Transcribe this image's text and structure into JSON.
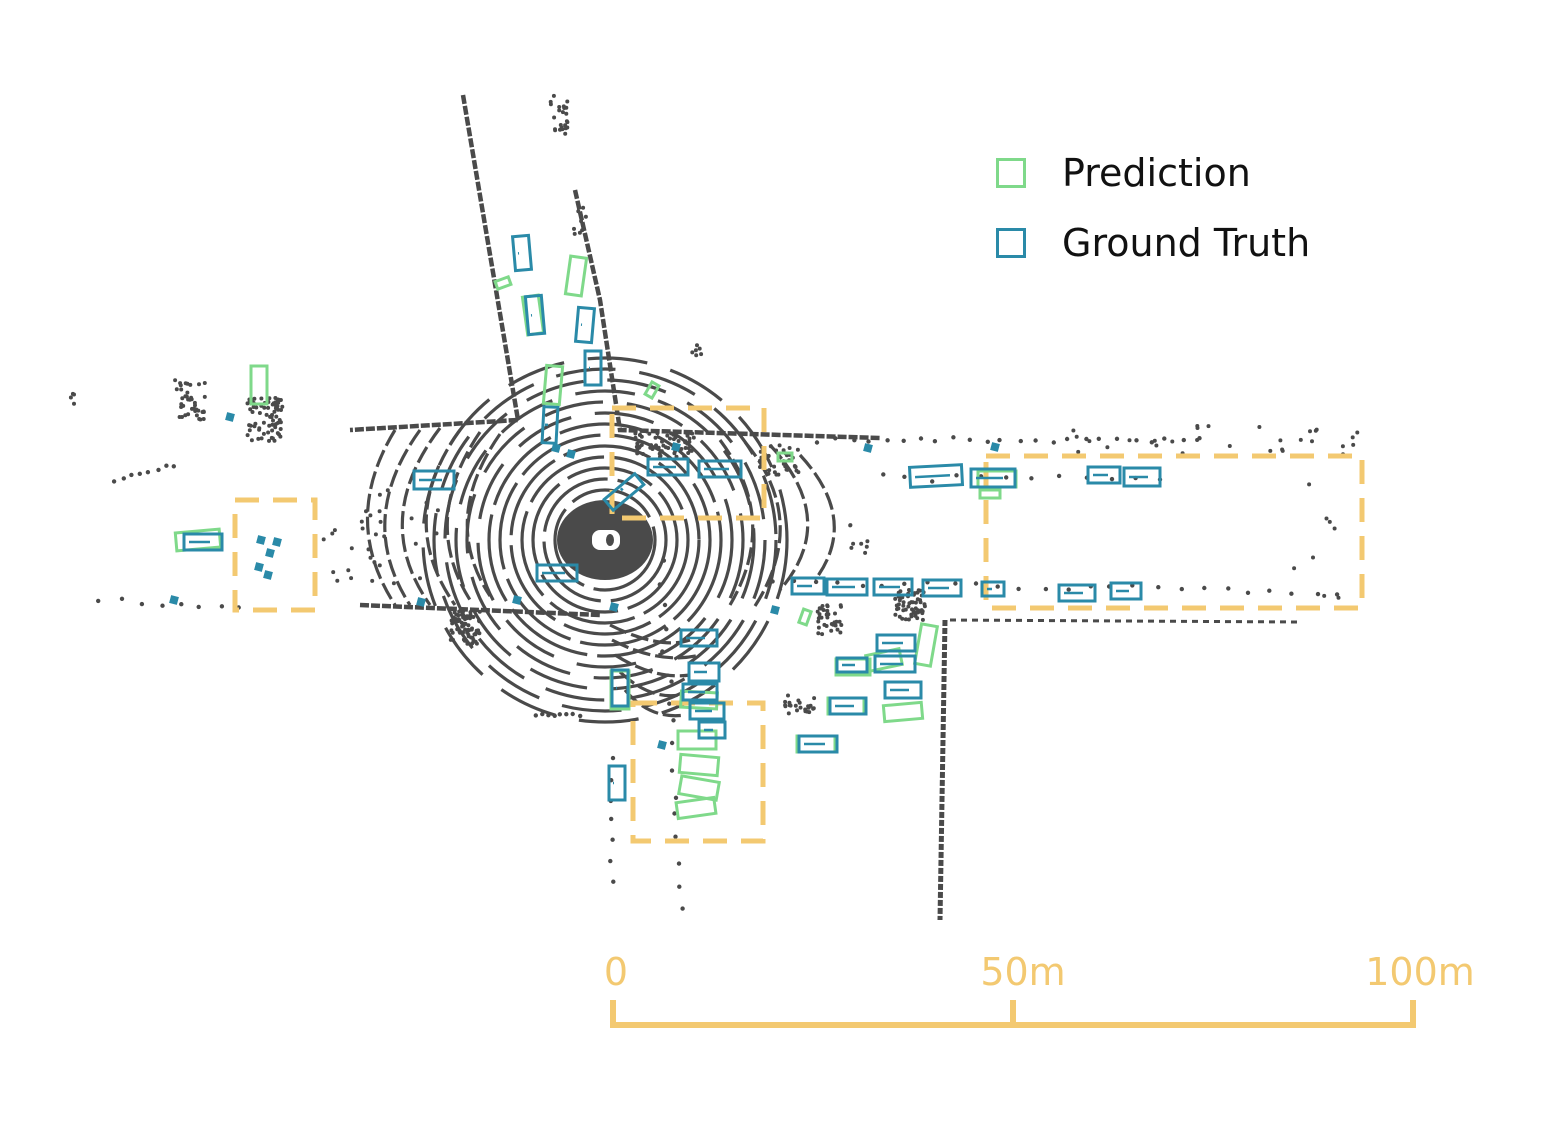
{
  "legend": {
    "items": [
      {
        "label": "Prediction",
        "color": "#7fd98a"
      },
      {
        "label": "Ground Truth",
        "color": "#2a8aa8"
      }
    ]
  },
  "scale_bar": {
    "labels": [
      "0",
      "50m",
      "100m"
    ],
    "color": "#f3c971"
  },
  "colors": {
    "points": "#4a4a4a",
    "prediction": "#7fd98a",
    "ground_truth": "#2a8aa8",
    "highlight": "#f3c971"
  }
}
